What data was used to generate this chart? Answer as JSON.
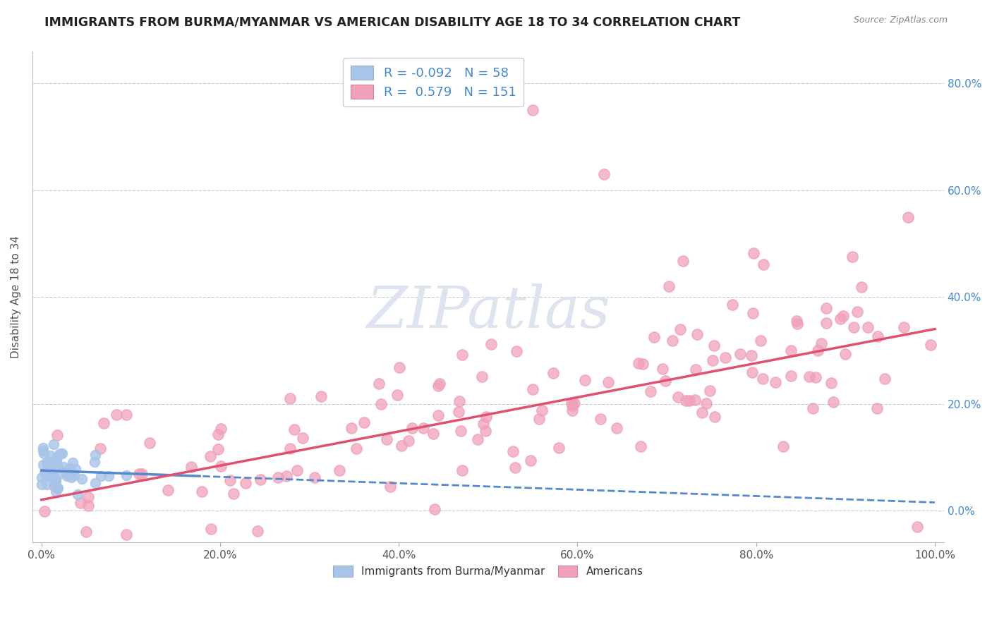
{
  "title": "IMMIGRANTS FROM BURMA/MYANMAR VS AMERICAN DISABILITY AGE 18 TO 34 CORRELATION CHART",
  "source_text": "Source: ZipAtlas.com",
  "ylabel": "Disability Age 18 to 34",
  "watermark": "ZIPatlas",
  "xlim": [
    -0.01,
    1.01
  ],
  "ylim": [
    -0.06,
    0.86
  ],
  "xticks": [
    0.0,
    0.2,
    0.4,
    0.6,
    0.8,
    1.0
  ],
  "xtick_labels": [
    "0.0%",
    "20.0%",
    "40.0%",
    "60.0%",
    "80.0%",
    "100.0%"
  ],
  "yticks": [
    0.0,
    0.2,
    0.4,
    0.6,
    0.8
  ],
  "ytick_labels": [
    "0.0%",
    "20.0%",
    "40.0%",
    "60.0%",
    "80.0%"
  ],
  "legend_R1": "-0.092",
  "legend_N1": "58",
  "legend_R2": "0.579",
  "legend_N2": "151",
  "legend_label1": "Immigrants from Burma/Myanmar",
  "legend_label2": "Americans",
  "scatter1_color": "#a8c4e8",
  "scatter2_color": "#f0a0b8",
  "line1_color": "#5588cc",
  "line2_color": "#e05070",
  "grid_color": "#cccccc",
  "title_color": "#222222",
  "yaxis_color": "#4488cc",
  "axis_color": "#555555",
  "watermark_color": "#dde4f0",
  "background_color": "#ffffff",
  "line1_slope": -0.06,
  "line1_intercept": 0.075,
  "line2_slope": 0.32,
  "line2_intercept": 0.02
}
